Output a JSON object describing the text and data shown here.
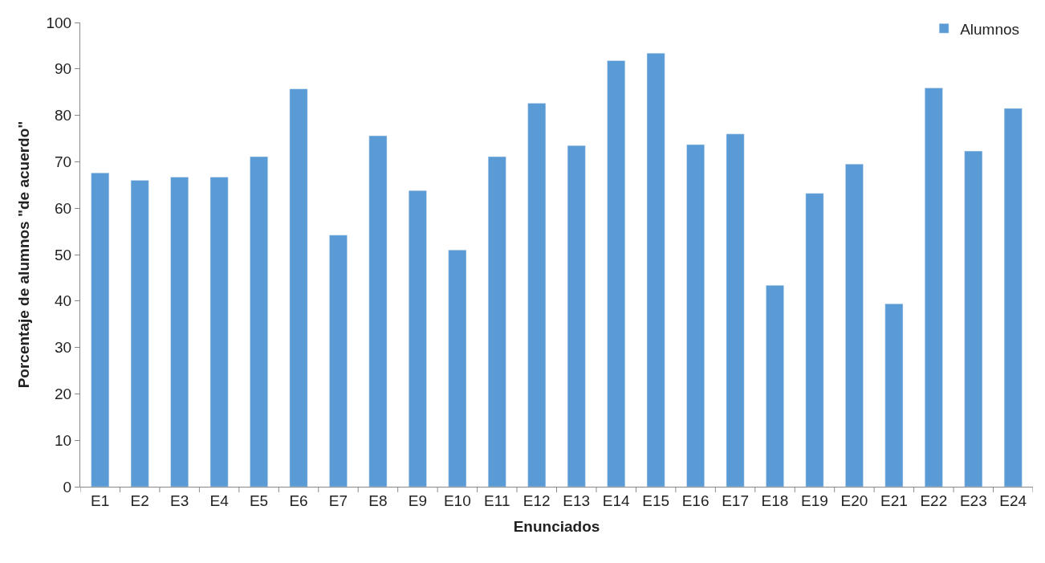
{
  "chart_data": {
    "type": "bar",
    "xlabel": "Enunciados",
    "ylabel": "Porcentaje de alumnos \"de acuerdo\"",
    "categories": [
      "E1",
      "E2",
      "E3",
      "E4",
      "E5",
      "E6",
      "E7",
      "E8",
      "E9",
      "E10",
      "E11",
      "E12",
      "E13",
      "E14",
      "E15",
      "E16",
      "E17",
      "E18",
      "E19",
      "E20",
      "E21",
      "E22",
      "E23",
      "E24"
    ],
    "series": [
      {
        "name": "Alumnos",
        "color": "#5b9bd5",
        "values": [
          67.6,
          66.0,
          66.7,
          66.7,
          71.1,
          85.7,
          54.2,
          75.6,
          63.8,
          51.0,
          71.1,
          82.6,
          73.5,
          91.8,
          93.4,
          73.7,
          76.0,
          43.4,
          63.2,
          69.5,
          39.4,
          85.9,
          72.3,
          81.5
        ]
      }
    ],
    "ylim": [
      0,
      100
    ],
    "yticks": [
      0,
      10,
      20,
      30,
      40,
      50,
      60,
      70,
      80,
      90,
      100
    ],
    "legend": "top right"
  }
}
